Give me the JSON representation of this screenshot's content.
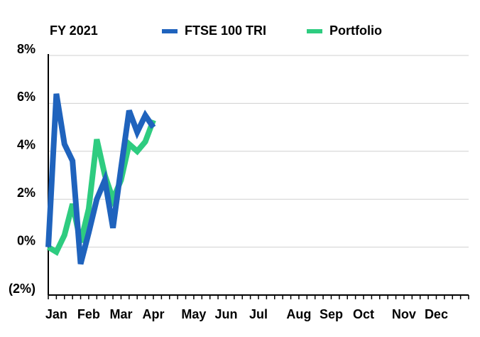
{
  "chart_data": {
    "type": "line",
    "title": "FY 2021",
    "categories": [
      null,
      "Jan",
      null,
      null,
      null,
      "Feb",
      null,
      null,
      null,
      "Mar",
      null,
      null,
      null,
      "Apr",
      null,
      null,
      null,
      null,
      "May",
      null,
      null,
      null,
      "Jun",
      null,
      null,
      null,
      "Jul",
      null,
      null,
      null,
      null,
      "Aug",
      null,
      null,
      null,
      "Sep",
      null,
      null,
      null,
      "Oct",
      null,
      null,
      null,
      null,
      "Nov",
      null,
      null,
      null,
      "Dec",
      null,
      null,
      null,
      null
    ],
    "series": [
      {
        "name": "FTSE 100 TRI",
        "color": "#1f63bd",
        "values": [
          0.0,
          6.4,
          4.3,
          3.6,
          -0.7,
          0.6,
          2.0,
          2.8,
          0.8,
          3.3,
          5.7,
          4.8,
          5.5,
          5.0,
          null,
          null,
          null,
          null,
          null,
          null,
          null,
          null,
          null,
          null,
          null,
          null,
          null,
          null,
          null,
          null,
          null,
          null,
          null,
          null,
          null,
          null,
          null,
          null,
          null,
          null,
          null,
          null,
          null,
          null,
          null,
          null,
          null,
          null,
          null,
          null,
          null,
          null,
          null
        ]
      },
      {
        "name": "Portfolio",
        "color": "#2ecc80",
        "values": [
          0.0,
          -0.2,
          0.5,
          1.8,
          0.2,
          1.6,
          4.5,
          3.0,
          2.0,
          2.8,
          4.3,
          4.0,
          4.4,
          5.3,
          null,
          null,
          null,
          null,
          null,
          null,
          null,
          null,
          null,
          null,
          null,
          null,
          null,
          null,
          null,
          null,
          null,
          null,
          null,
          null,
          null,
          null,
          null,
          null,
          null,
          null,
          null,
          null,
          null,
          null,
          null,
          null,
          null,
          null,
          null,
          null,
          null,
          null,
          null
        ]
      }
    ],
    "ylim": [
      -2,
      8
    ],
    "yticks": [
      {
        "value": -2,
        "label": "(2%)"
      },
      {
        "value": 0,
        "label": "0%"
      },
      {
        "value": 2,
        "label": "2%"
      },
      {
        "value": 4,
        "label": "4%"
      },
      {
        "value": 6,
        "label": "6%"
      },
      {
        "value": 8,
        "label": "8%"
      }
    ],
    "grid": true
  }
}
